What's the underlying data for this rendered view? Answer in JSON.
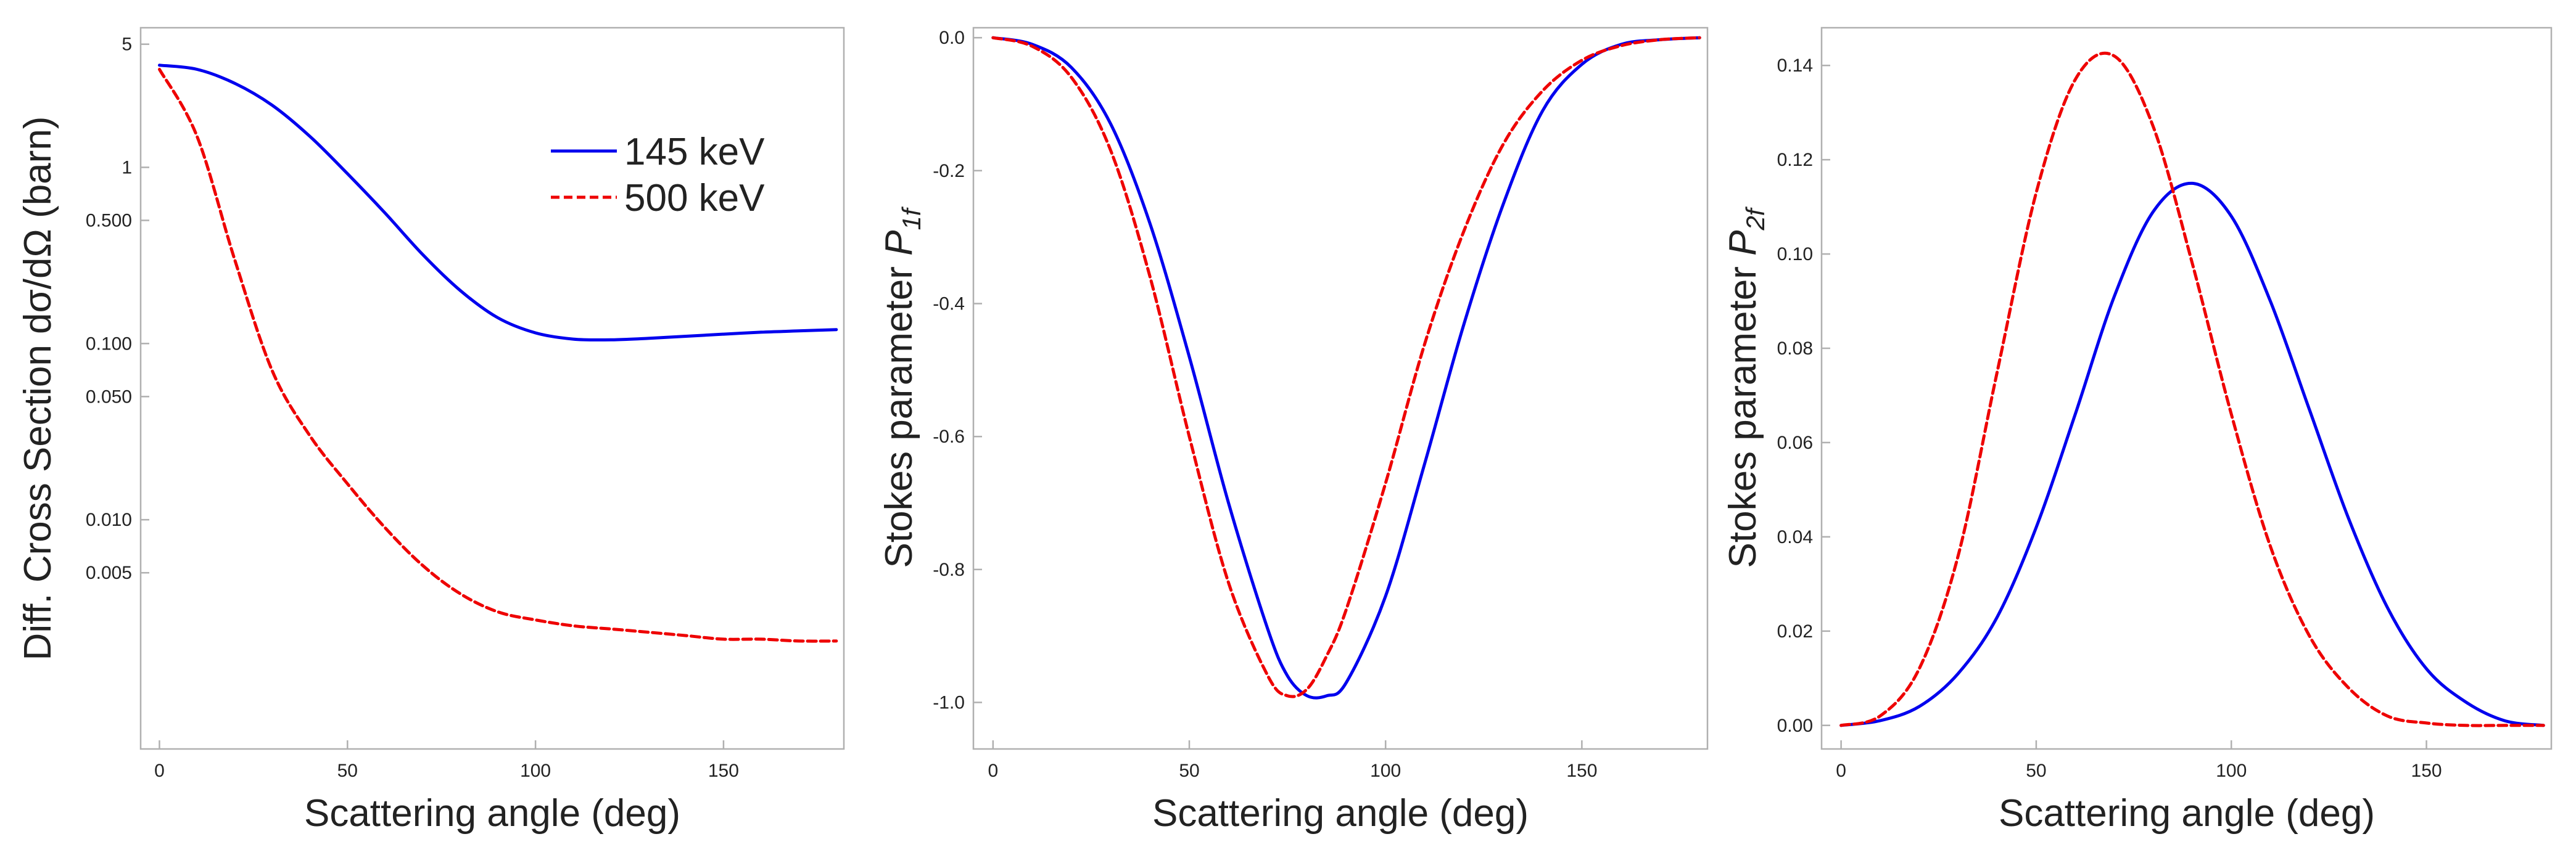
{
  "colors": {
    "series_145": "#0000ee",
    "series_500": "#ee0000"
  },
  "chart_data": [
    {
      "type": "line",
      "yscale": "log",
      "title": "",
      "xlabel": "Scattering angle (deg)",
      "ylabel": "Diff. Cross Section dσ/dΩ (barn)",
      "xlim": [
        -5,
        182
      ],
      "ylim": [
        0.0005,
        6.2
      ],
      "xticks": [
        0,
        50,
        100,
        150
      ],
      "xtick_labels": [
        "0",
        "50",
        "100",
        "150"
      ],
      "yticks": [
        5,
        1,
        0.5,
        0.1,
        0.05,
        0.01,
        0.005
      ],
      "ytick_labels": [
        "5",
        "1",
        "0.500",
        "0.100",
        "0.050",
        "0.010",
        "0.005"
      ],
      "legend": {
        "position": "top-right",
        "entries": [
          "145 keV",
          "500 keV"
        ]
      },
      "x": [
        0,
        10,
        20,
        30,
        40,
        50,
        60,
        70,
        80,
        90,
        100,
        110,
        120,
        130,
        140,
        150,
        160,
        170,
        180
      ],
      "series": [
        {
          "name": "145 keV",
          "style": "solid",
          "color": "#0000ee",
          "values": [
            3.8,
            3.6,
            3.0,
            2.25,
            1.5,
            0.92,
            0.55,
            0.32,
            0.2,
            0.14,
            0.115,
            0.106,
            0.105,
            0.107,
            0.11,
            0.113,
            0.116,
            0.118,
            0.12
          ]
        },
        {
          "name": "500 keV",
          "style": "dashed",
          "color": "#ee0000",
          "values": [
            3.6,
            1.5,
            0.3,
            0.07,
            0.03,
            0.016,
            0.009,
            0.0055,
            0.0038,
            0.003,
            0.0027,
            0.0025,
            0.0024,
            0.0023,
            0.0022,
            0.0021,
            0.0021,
            0.00205,
            0.00205
          ]
        }
      ]
    },
    {
      "type": "line",
      "title": "",
      "xlabel": "Scattering angle (deg)",
      "ylabel": "Stokes parameter",
      "ylabel_symbol": "P",
      "ylabel_subscript": "1f",
      "xlim": [
        -5,
        182
      ],
      "ylim": [
        -1.07,
        0.015
      ],
      "xticks": [
        0,
        50,
        100,
        150
      ],
      "xtick_labels": [
        "0",
        "50",
        "100",
        "150"
      ],
      "yticks": [
        0.0,
        -0.2,
        -0.4,
        -0.6,
        -0.8,
        -1.0
      ],
      "ytick_labels": [
        "0.0",
        "-0.2",
        "-0.4",
        "-0.6",
        "-0.8",
        "-1.0"
      ],
      "x": [
        0,
        10,
        20,
        30,
        40,
        50,
        60,
        70,
        75,
        80,
        85,
        90,
        100,
        110,
        120,
        130,
        140,
        150,
        160,
        170,
        180
      ],
      "series": [
        {
          "name": "145 keV",
          "style": "solid",
          "color": "#0000ee",
          "values": [
            0,
            -0.01,
            -0.045,
            -0.13,
            -0.28,
            -0.48,
            -0.7,
            -0.89,
            -0.96,
            -0.99,
            -0.99,
            -0.97,
            -0.84,
            -0.64,
            -0.43,
            -0.25,
            -0.11,
            -0.04,
            -0.01,
            -0.003,
            0
          ]
        },
        {
          "name": "500 keV",
          "style": "dashed",
          "color": "#ee0000",
          "values": [
            0,
            -0.013,
            -0.06,
            -0.17,
            -0.36,
            -0.6,
            -0.82,
            -0.96,
            -0.99,
            -0.98,
            -0.93,
            -0.86,
            -0.67,
            -0.46,
            -0.29,
            -0.16,
            -0.08,
            -0.034,
            -0.012,
            -0.003,
            0
          ]
        }
      ]
    },
    {
      "type": "line",
      "title": "",
      "xlabel": "Scattering angle (deg)",
      "ylabel": "Stokes parameter",
      "ylabel_symbol": "P",
      "ylabel_subscript": "2f",
      "xlim": [
        -5,
        182
      ],
      "ylim": [
        -0.005,
        0.148
      ],
      "xticks": [
        0,
        50,
        100,
        150
      ],
      "xtick_labels": [
        "0",
        "50",
        "100",
        "150"
      ],
      "yticks": [
        0.0,
        0.02,
        0.04,
        0.06,
        0.08,
        0.1,
        0.12,
        0.14
      ],
      "ytick_labels": [
        "0.00",
        "0.02",
        "0.04",
        "0.06",
        "0.08",
        "0.10",
        "0.12",
        "0.14"
      ],
      "x": [
        0,
        10,
        20,
        30,
        40,
        50,
        60,
        70,
        80,
        90,
        100,
        110,
        120,
        130,
        140,
        150,
        160,
        170,
        180
      ],
      "series": [
        {
          "name": "145 keV",
          "style": "solid",
          "color": "#0000ee",
          "values": [
            0,
            0.001,
            0.004,
            0.011,
            0.023,
            0.042,
            0.066,
            0.091,
            0.109,
            0.115,
            0.108,
            0.09,
            0.067,
            0.044,
            0.025,
            0.012,
            0.005,
            0.001,
            0
          ]
        },
        {
          "name": "500 keV",
          "style": "dashed",
          "color": "#ee0000",
          "values": [
            0,
            0.002,
            0.012,
            0.036,
            0.075,
            0.113,
            0.137,
            0.142,
            0.127,
            0.098,
            0.066,
            0.038,
            0.019,
            0.008,
            0.002,
            0.0005,
            0,
            0,
            0
          ]
        }
      ]
    }
  ]
}
